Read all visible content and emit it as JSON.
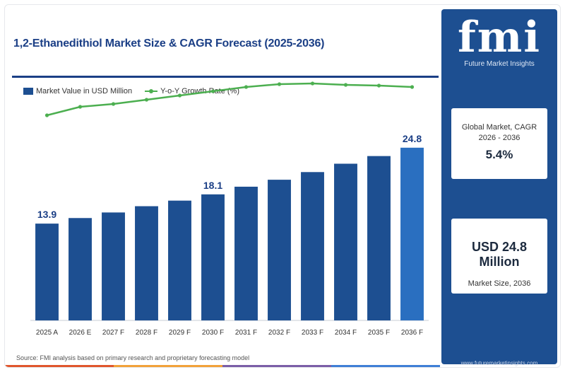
{
  "header": {
    "title": "1,2-Ethanedithiol Market Size & CAGR Forecast (2025-2036)"
  },
  "legend": {
    "bar_label": "Market Value in USD Million",
    "line_label": "Y-o-Y Growth Rate (%)"
  },
  "source": "Source: FMI analysis based on primary research and proprietary forecasting model",
  "brand": {
    "logo": "fmi",
    "name": "Future Market Insights",
    "url": "www.futuremarketinsights.com"
  },
  "cards": {
    "cagr_label": "Global Market, CAGR 2026 - 2036",
    "cagr_value": "5.4%",
    "size_value": "USD 24.8 Million",
    "size_label": "Market Size, 2036"
  },
  "colors": {
    "bar": "#1d4f91",
    "bar_highlight": "#2a6fc0",
    "line": "#4caf50",
    "panel": "#1d4f91",
    "strip": [
      "#e0562d",
      "#f2a23a",
      "#7b5ea7",
      "#3f7fd6"
    ]
  },
  "chart_data": {
    "type": "bar",
    "title": "1,2-Ethanedithiol Market Size & CAGR Forecast (2025-2036)",
    "categories": [
      "2025 A",
      "2026 E",
      "2027 F",
      "2028 F",
      "2029 F",
      "2030 F",
      "2031 F",
      "2032 F",
      "2033 F",
      "2034 F",
      "2035 F",
      "2036 F"
    ],
    "series": [
      {
        "name": "Market Value in USD Million",
        "type": "bar",
        "values": [
          13.9,
          14.7,
          15.5,
          16.4,
          17.2,
          18.1,
          19.2,
          20.2,
          21.3,
          22.5,
          23.6,
          24.8
        ]
      },
      {
        "name": "Y-o-Y Growth Rate (%)",
        "type": "line",
        "values": [
          4.2,
          4.8,
          5.0,
          5.3,
          5.6,
          5.9,
          6.2,
          6.4,
          6.45,
          6.35,
          6.3,
          6.2
        ]
      }
    ],
    "data_labels": [
      {
        "index": 0,
        "text": "13.9"
      },
      {
        "index": 5,
        "text": "18.1"
      },
      {
        "index": 11,
        "text": "24.8"
      }
    ],
    "highlight_index": 11,
    "ylim": [
      0,
      26
    ],
    "ylim_secondary": [
      0,
      7
    ],
    "grid": false,
    "legend_position": "top-left"
  }
}
